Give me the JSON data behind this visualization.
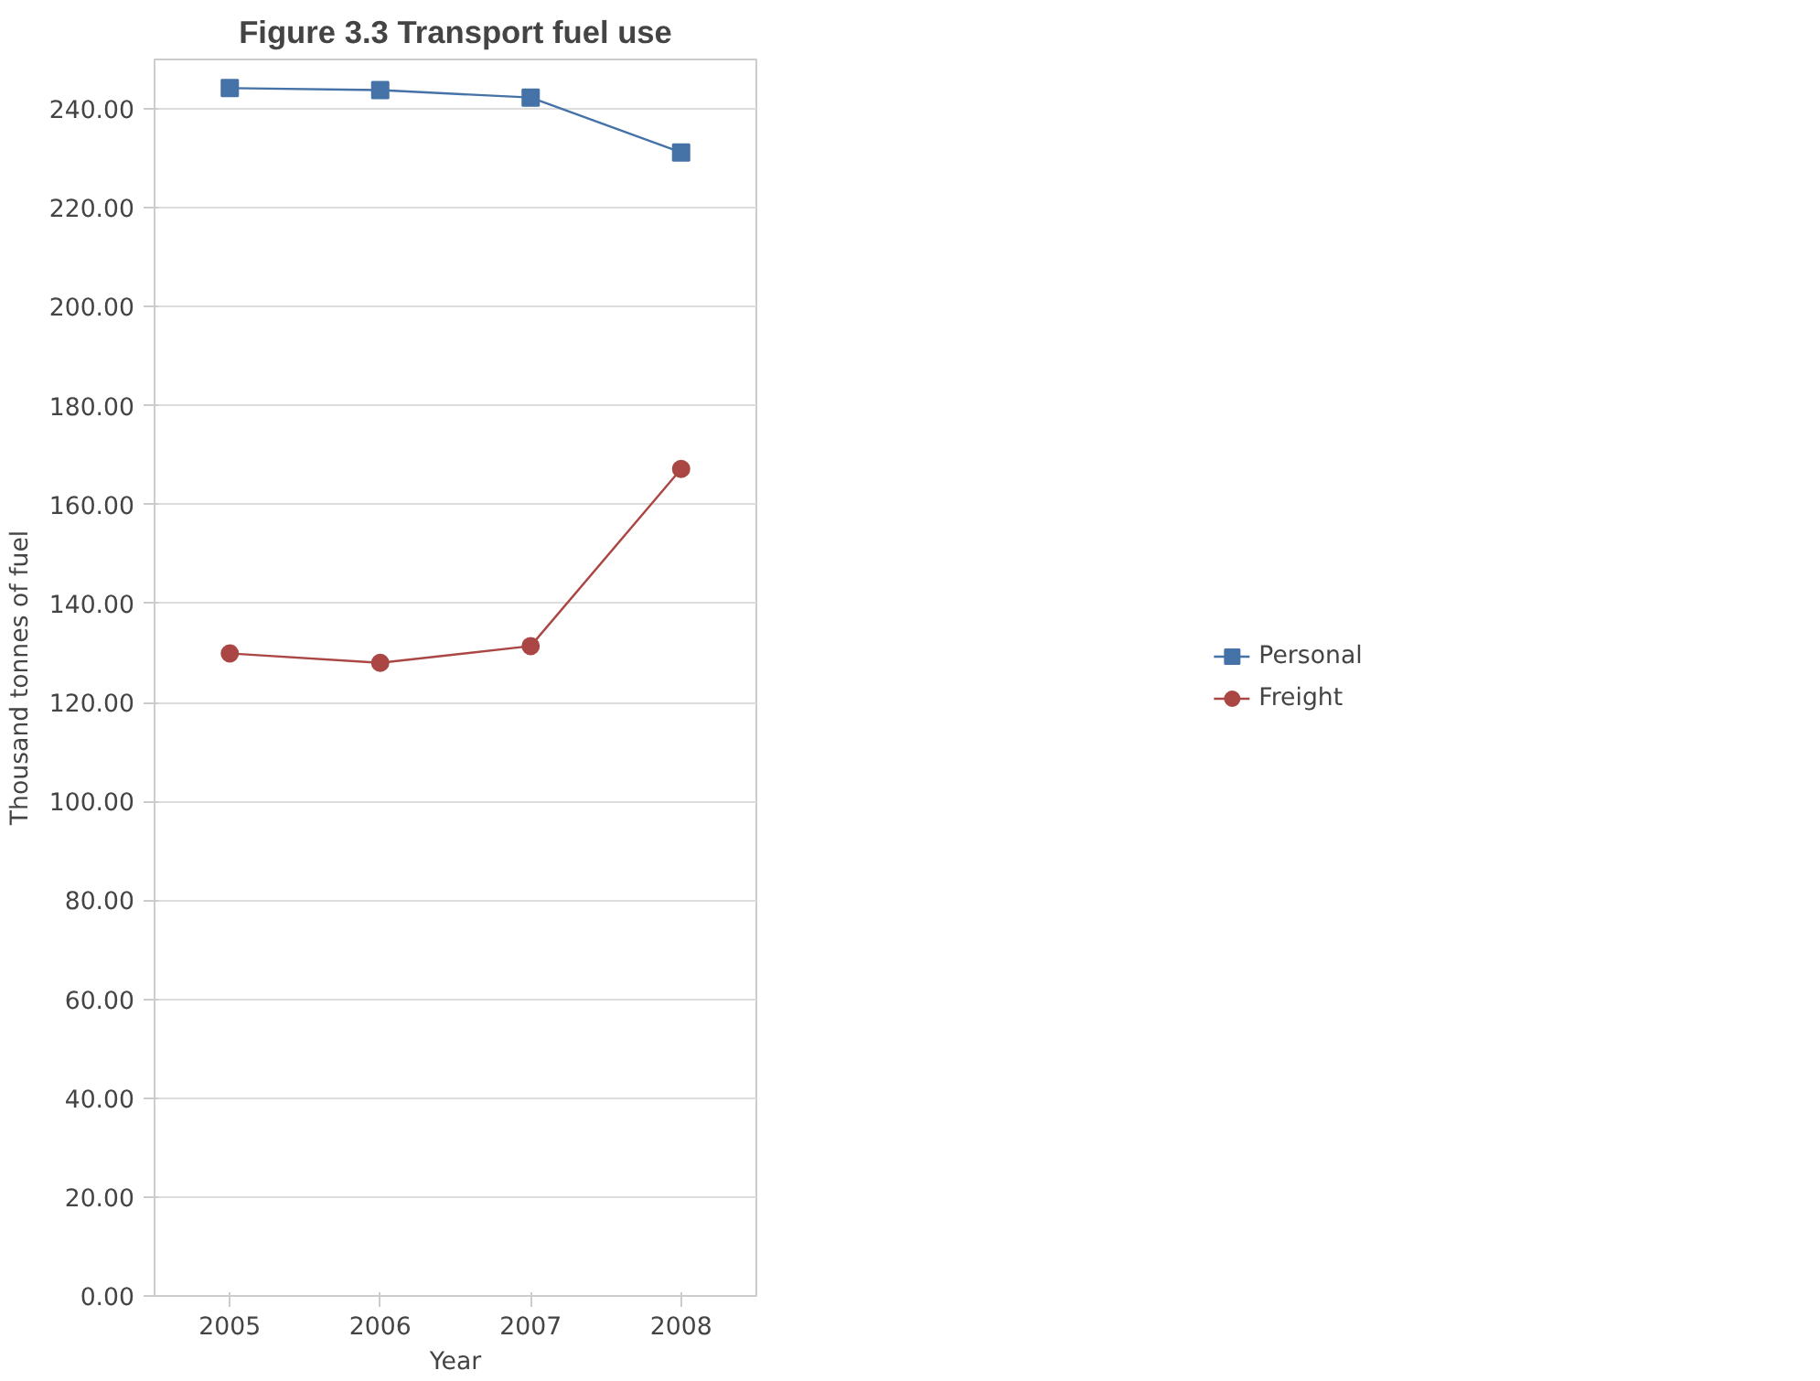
{
  "chart_data": {
    "type": "line",
    "title": "Figure 3.3 Transport fuel use",
    "xlabel": "Year",
    "ylabel": "Thousand tonnes of fuel",
    "categories": [
      "2005",
      "2006",
      "2007",
      "2008"
    ],
    "series": [
      {
        "name": "Personal",
        "color": "#4572a7",
        "marker": "square",
        "values": [
          244.2,
          243.8,
          242.3,
          231.2
        ]
      },
      {
        "name": "Freight",
        "color": "#aa4643",
        "marker": "circle",
        "values": [
          129.9,
          128.0,
          131.4,
          167.2
        ]
      }
    ],
    "ylim": [
      0,
      250
    ],
    "yticks": [
      {
        "value": 0,
        "label": "0.00"
      },
      {
        "value": 20,
        "label": "20.00"
      },
      {
        "value": 40,
        "label": "40.00"
      },
      {
        "value": 60,
        "label": "60.00"
      },
      {
        "value": 80,
        "label": "80.00"
      },
      {
        "value": 100,
        "label": "100.00"
      },
      {
        "value": 120,
        "label": "120.00"
      },
      {
        "value": 140,
        "label": "140.00"
      },
      {
        "value": 160,
        "label": "160.00"
      },
      {
        "value": 180,
        "label": "180.00"
      },
      {
        "value": 200,
        "label": "200.00"
      },
      {
        "value": 220,
        "label": "220.00"
      },
      {
        "value": 240,
        "label": "240.00"
      }
    ],
    "grid": "y",
    "legend": "right",
    "line_style": "solid"
  }
}
